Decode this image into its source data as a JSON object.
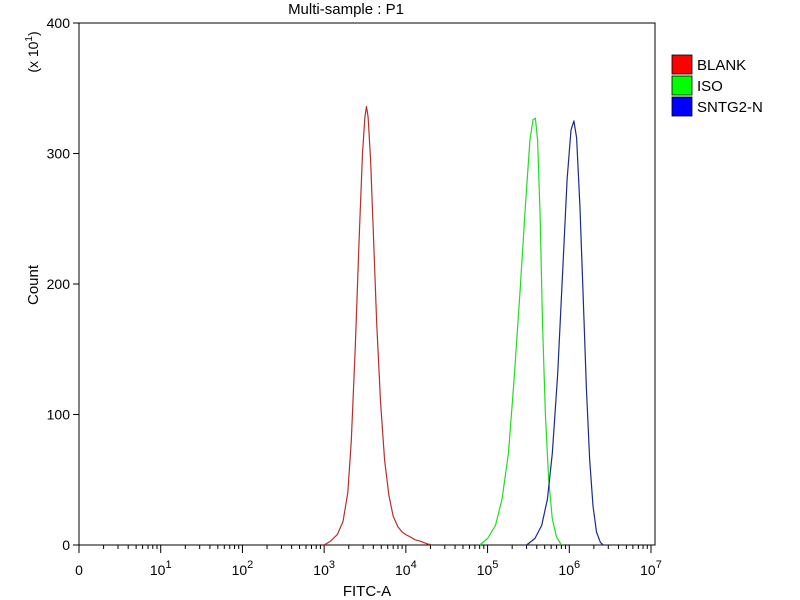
{
  "chart_data": {
    "type": "line",
    "title": "Multi-sample : P1",
    "xlabel": "FITC-A",
    "ylabel": "Count",
    "y_multiplier_label": "(x 10^1)",
    "x_scale": "log",
    "x_range": [
      1,
      10000000
    ],
    "x_ticks": [
      {
        "value": 1,
        "label": "0"
      },
      {
        "value": 10,
        "label": "10^1"
      },
      {
        "value": 100,
        "label": "10^2"
      },
      {
        "value": 1000,
        "label": "10^3"
      },
      {
        "value": 10000,
        "label": "10^4"
      },
      {
        "value": 100000,
        "label": "10^5"
      },
      {
        "value": 1000000,
        "label": "10^6"
      },
      {
        "value": 10000000,
        "label": "10^7"
      }
    ],
    "y_range": [
      0,
      400
    ],
    "y_ticks": [
      0,
      100,
      200,
      300,
      400
    ],
    "grid": false,
    "legend_position": "top-right",
    "series": [
      {
        "name": "BLANK",
        "color": "#b5302c",
        "legend_color": "#ff0000",
        "points": [
          [
            1000,
            0
          ],
          [
            1200,
            3
          ],
          [
            1450,
            8
          ],
          [
            1700,
            18
          ],
          [
            1950,
            40
          ],
          [
            2150,
            80
          ],
          [
            2400,
            150
          ],
          [
            2700,
            240
          ],
          [
            2950,
            300
          ],
          [
            3150,
            328
          ],
          [
            3300,
            336
          ],
          [
            3450,
            328
          ],
          [
            3700,
            295
          ],
          [
            4000,
            240
          ],
          [
            4400,
            170
          ],
          [
            4900,
            110
          ],
          [
            5500,
            65
          ],
          [
            6200,
            38
          ],
          [
            7000,
            22
          ],
          [
            8000,
            14
          ],
          [
            9000,
            10
          ],
          [
            10000,
            8
          ],
          [
            11500,
            6
          ],
          [
            13000,
            4
          ],
          [
            15000,
            3
          ],
          [
            18000,
            1
          ],
          [
            21000,
            0
          ]
        ]
      },
      {
        "name": "ISO",
        "color": "#22dd22",
        "legend_color": "#00ff00",
        "points": [
          [
            80000,
            0
          ],
          [
            100000,
            5
          ],
          [
            125000,
            15
          ],
          [
            150000,
            35
          ],
          [
            180000,
            70
          ],
          [
            210000,
            125
          ],
          [
            250000,
            195
          ],
          [
            290000,
            260
          ],
          [
            330000,
            310
          ],
          [
            360000,
            326
          ],
          [
            385000,
            327
          ],
          [
            410000,
            310
          ],
          [
            440000,
            250
          ],
          [
            470000,
            170
          ],
          [
            510000,
            100
          ],
          [
            560000,
            50
          ],
          [
            620000,
            20
          ],
          [
            700000,
            6
          ],
          [
            800000,
            0
          ]
        ]
      },
      {
        "name": "SNTG2-N",
        "color": "#1c2a8a",
        "legend_color": "#0000ff",
        "points": [
          [
            300000,
            0
          ],
          [
            380000,
            5
          ],
          [
            460000,
            15
          ],
          [
            540000,
            35
          ],
          [
            620000,
            70
          ],
          [
            720000,
            130
          ],
          [
            830000,
            210
          ],
          [
            940000,
            280
          ],
          [
            1050000,
            318
          ],
          [
            1140000,
            325
          ],
          [
            1230000,
            312
          ],
          [
            1350000,
            260
          ],
          [
            1480000,
            190
          ],
          [
            1620000,
            120
          ],
          [
            1780000,
            65
          ],
          [
            1950000,
            30
          ],
          [
            2150000,
            10
          ],
          [
            2400000,
            2
          ],
          [
            2600000,
            0
          ]
        ]
      }
    ]
  }
}
